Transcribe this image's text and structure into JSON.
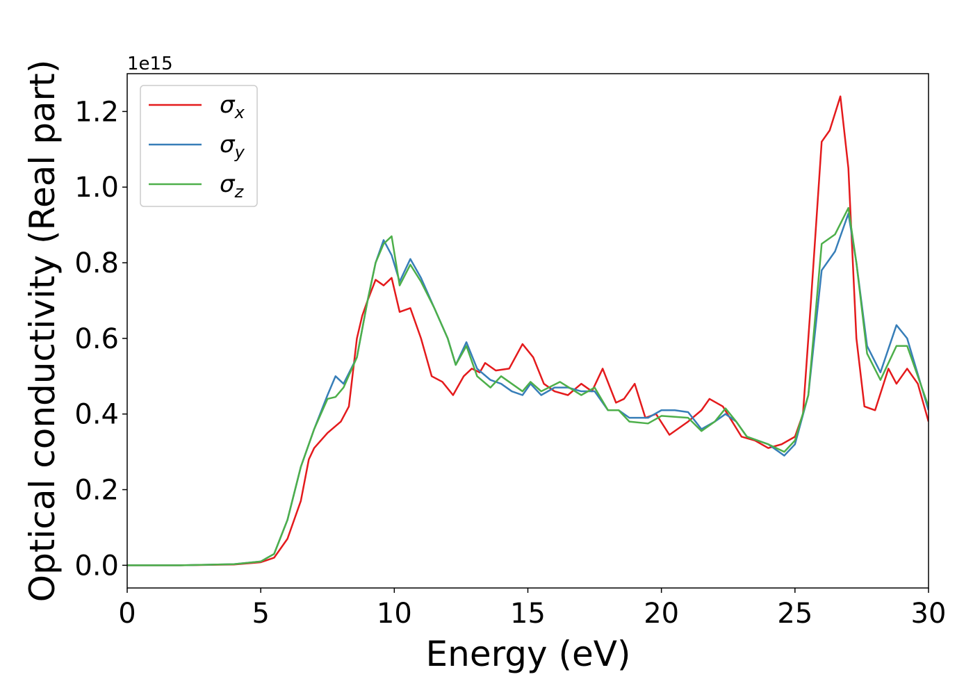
{
  "chart_data": {
    "type": "line",
    "xlabel": "Energy (eV)",
    "ylabel": "Optical conductivity (Real part)",
    "offset_label": "1e15",
    "xlim": [
      0,
      30
    ],
    "ylim": [
      -0.06,
      1.3
    ],
    "xticks": [
      0,
      5,
      10,
      15,
      20,
      25,
      30
    ],
    "yticks": [
      {
        "value": 0,
        "label": "0.0"
      },
      {
        "value": 0.2,
        "label": "0.2"
      },
      {
        "value": 0.4,
        "label": "0.4"
      },
      {
        "value": 0.6,
        "label": "0.6"
      },
      {
        "value": 0.8,
        "label": "0.8"
      },
      {
        "value": 1.0,
        "label": "1.0"
      },
      {
        "value": 1.2,
        "label": "1.2"
      }
    ],
    "grid": false,
    "legend": "upper left",
    "series": [
      {
        "name": "σx",
        "color": "#e41a1c",
        "x": [
          0,
          2,
          4,
          5,
          5.5,
          6,
          6.5,
          6.8,
          7,
          7.5,
          8,
          8.3,
          8.6,
          8.8,
          9,
          9.3,
          9.6,
          9.9,
          10.2,
          10.6,
          11,
          11.4,
          11.8,
          12.2,
          12.6,
          12.9,
          13.2,
          13.4,
          13.8,
          14.3,
          14.8,
          15.2,
          15.6,
          16,
          16.5,
          17,
          17.4,
          17.8,
          18.3,
          18.6,
          19,
          19.4,
          19.8,
          20.3,
          21,
          21.5,
          21.8,
          22.3,
          23,
          23.5,
          24,
          24.5,
          25,
          25.3,
          25.6,
          26,
          26.3,
          26.7,
          27,
          27.3,
          27.6,
          28,
          28.5,
          28.8,
          29.2,
          29.6,
          30
        ],
        "values": [
          0,
          0,
          0.002,
          0.008,
          0.02,
          0.07,
          0.17,
          0.28,
          0.31,
          0.35,
          0.38,
          0.42,
          0.6,
          0.66,
          0.7,
          0.755,
          0.74,
          0.76,
          0.67,
          0.68,
          0.6,
          0.5,
          0.485,
          0.45,
          0.5,
          0.52,
          0.51,
          0.535,
          0.515,
          0.52,
          0.585,
          0.55,
          0.48,
          0.46,
          0.45,
          0.48,
          0.46,
          0.52,
          0.43,
          0.44,
          0.48,
          0.39,
          0.4,
          0.345,
          0.38,
          0.41,
          0.44,
          0.42,
          0.34,
          0.33,
          0.31,
          0.32,
          0.34,
          0.4,
          0.7,
          1.12,
          1.15,
          1.24,
          1.05,
          0.6,
          0.42,
          0.41,
          0.52,
          0.48,
          0.52,
          0.48,
          0.38
        ]
      },
      {
        "name": "σy",
        "color": "#377eb8",
        "x": [
          0,
          2,
          4,
          5,
          5.5,
          6,
          6.5,
          7,
          7.5,
          7.8,
          8.1,
          8.6,
          9,
          9.3,
          9.6,
          9.9,
          10.2,
          10.6,
          11,
          11.5,
          12,
          12.3,
          12.7,
          13.1,
          13.6,
          14,
          14.4,
          14.8,
          15.1,
          15.5,
          16,
          16.5,
          17,
          17.5,
          18,
          18.4,
          18.8,
          19.5,
          20,
          20.5,
          21,
          21.5,
          22,
          22.4,
          22.8,
          23.2,
          24,
          24.6,
          25,
          25.5,
          26,
          26.5,
          27,
          27.3,
          27.7,
          28.2,
          28.8,
          29.2,
          30
        ],
        "values": [
          0,
          0,
          0.003,
          0.01,
          0.03,
          0.12,
          0.26,
          0.36,
          0.45,
          0.5,
          0.48,
          0.55,
          0.7,
          0.8,
          0.86,
          0.82,
          0.75,
          0.81,
          0.76,
          0.68,
          0.6,
          0.53,
          0.59,
          0.52,
          0.49,
          0.48,
          0.46,
          0.45,
          0.48,
          0.45,
          0.47,
          0.47,
          0.46,
          0.46,
          0.41,
          0.41,
          0.39,
          0.39,
          0.41,
          0.41,
          0.405,
          0.36,
          0.38,
          0.4,
          0.38,
          0.34,
          0.32,
          0.29,
          0.32,
          0.45,
          0.78,
          0.83,
          0.93,
          0.8,
          0.58,
          0.51,
          0.635,
          0.6,
          0.41
        ]
      },
      {
        "name": "σz",
        "color": "#4daf4a",
        "x": [
          0,
          2,
          4,
          5,
          5.5,
          6,
          6.5,
          7,
          7.5,
          7.8,
          8.1,
          8.6,
          9,
          9.3,
          9.6,
          9.9,
          10.2,
          10.6,
          11,
          11.5,
          12,
          12.3,
          12.7,
          13.1,
          13.6,
          14,
          14.4,
          14.8,
          15.1,
          15.5,
          16.2,
          17,
          17.5,
          18,
          18.4,
          18.8,
          19.5,
          20,
          21,
          21.5,
          22,
          22.4,
          22.8,
          23.2,
          24,
          24.6,
          25,
          25.5,
          26,
          26.5,
          27,
          27.3,
          27.7,
          28.2,
          28.8,
          29.2,
          30
        ],
        "values": [
          0,
          0,
          0.003,
          0.01,
          0.03,
          0.12,
          0.26,
          0.36,
          0.44,
          0.445,
          0.47,
          0.55,
          0.7,
          0.8,
          0.85,
          0.87,
          0.74,
          0.795,
          0.75,
          0.68,
          0.6,
          0.53,
          0.58,
          0.5,
          0.47,
          0.5,
          0.48,
          0.46,
          0.485,
          0.46,
          0.485,
          0.45,
          0.47,
          0.41,
          0.41,
          0.38,
          0.375,
          0.395,
          0.39,
          0.355,
          0.38,
          0.415,
          0.38,
          0.34,
          0.32,
          0.3,
          0.33,
          0.45,
          0.85,
          0.875,
          0.945,
          0.8,
          0.56,
          0.49,
          0.58,
          0.58,
          0.42
        ]
      }
    ]
  }
}
